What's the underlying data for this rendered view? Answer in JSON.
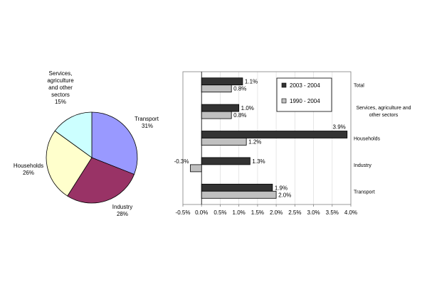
{
  "chart_data": [
    {
      "type": "pie",
      "title": "",
      "slices": [
        {
          "label": "Transport",
          "value": 31,
          "value_label": "31%",
          "color": "#9999ff"
        },
        {
          "label": "Industry",
          "value": 28,
          "value_label": "28%",
          "color": "#993366"
        },
        {
          "label": "Households",
          "value": 26,
          "value_label": "26%",
          "color": "#ffffcc"
        },
        {
          "label": "Services, agriculture and other sectors",
          "value": 15,
          "value_label": "15%",
          "color": "#ccffff"
        }
      ]
    },
    {
      "type": "bar",
      "orientation": "horizontal",
      "title": "",
      "xlabel": "",
      "ylabel": "",
      "categories": [
        "Total",
        "Services, agriculture and other sectors",
        "Households",
        "Industry",
        "Transport"
      ],
      "series": [
        {
          "name": "2003 - 2004",
          "color": "#333333",
          "values": [
            1.1,
            1.0,
            3.9,
            1.3,
            1.9
          ],
          "value_labels": [
            "1.1%",
            "1.0%",
            "3.9%",
            "1.3%",
            "1.9%"
          ]
        },
        {
          "name": "1990 - 2004",
          "color": "#c0c0c0",
          "values": [
            0.8,
            0.8,
            1.2,
            -0.3,
            2.0
          ],
          "value_labels": [
            "0.8%",
            "0.8%",
            "1.2%",
            "-0.3%",
            "2.0%"
          ]
        }
      ],
      "xlim": [
        -0.5,
        4.0
      ],
      "xticks": [
        -0.5,
        0.0,
        0.5,
        1.0,
        1.5,
        2.0,
        2.5,
        3.0,
        3.5,
        4.0
      ],
      "xtick_labels": [
        "-0.5%",
        "0.0%",
        "0.5%",
        "1.0%",
        "1.5%",
        "2.0%",
        "2.5%",
        "3.0%",
        "3.5%",
        "4.0%"
      ],
      "grid": true,
      "legend": "top-right"
    }
  ]
}
